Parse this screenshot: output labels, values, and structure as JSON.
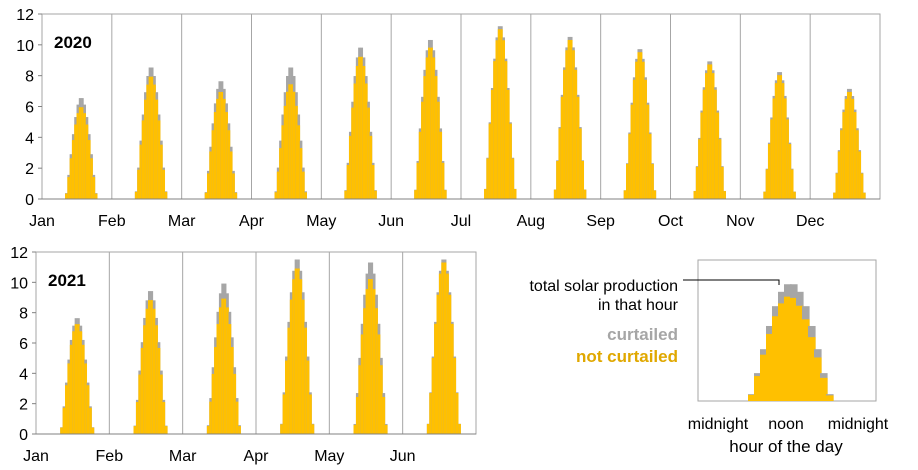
{
  "chart_data": [
    {
      "type": "bar",
      "title": "2020",
      "xlabel": "",
      "ylabel": "",
      "ylim": [
        0,
        12
      ],
      "yticks": [
        0,
        2,
        4,
        6,
        8,
        10,
        12
      ],
      "grid": true,
      "months": [
        "Jan",
        "Feb",
        "Mar",
        "Apr",
        "May",
        "Jun",
        "Jul",
        "Aug",
        "Sep",
        "Oct",
        "Nov",
        "Dec"
      ],
      "series": [
        {
          "name": "total solar production in that hour",
          "peak_values": [
            6.6,
            8.6,
            7.7,
            8.6,
            9.9,
            10.4,
            11.3,
            10.6,
            9.8,
            9.0,
            8.3,
            7.2
          ]
        },
        {
          "name": "not curtailed",
          "peak_values": [
            6.0,
            8.0,
            7.0,
            7.5,
            9.3,
            9.9,
            11.1,
            10.4,
            9.6,
            8.8,
            8.1,
            7.0
          ]
        }
      ]
    },
    {
      "type": "bar",
      "title": "2021",
      "xlabel": "",
      "ylabel": "",
      "ylim": [
        0,
        12
      ],
      "yticks": [
        0,
        2,
        4,
        6,
        8,
        10,
        12
      ],
      "grid": true,
      "months": [
        "Jan",
        "Feb",
        "Mar",
        "Apr",
        "May",
        "Jun"
      ],
      "series": [
        {
          "name": "total solar production in that hour",
          "peak_values": [
            7.7,
            9.5,
            10.0,
            11.6,
            11.4,
            11.6
          ]
        },
        {
          "name": "not curtailed",
          "peak_values": [
            7.3,
            8.9,
            9.0,
            11.0,
            10.3,
            11.4
          ]
        }
      ]
    }
  ],
  "legend": {
    "total_label_line1": "total solar production",
    "total_label_line2": "in that hour",
    "curtailed_label": "curtailed",
    "not_curtailed_label": "not curtailed",
    "x_ticks": [
      "midnight",
      "noon",
      "midnight"
    ],
    "xlabel": "hour of the day"
  },
  "colors": {
    "not_curtailed": "#FFC000",
    "curtailed": "#A6A6A6",
    "axis": "#808080",
    "grid": "#A6A6A6",
    "text": "#000000"
  }
}
